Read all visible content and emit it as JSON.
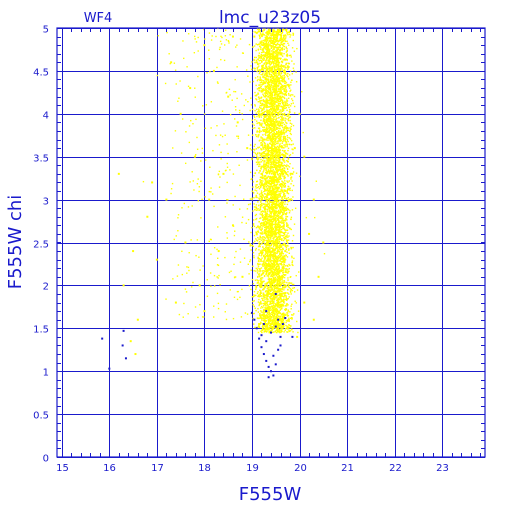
{
  "chart_data": {
    "type": "scatter",
    "title": "lmc_u23z05",
    "panel_label": "WF4",
    "xlabel": "F555W",
    "ylabel": "F555W  chi",
    "xlim": [
      14.9,
      23.9
    ],
    "ylim": [
      0,
      5
    ],
    "xticks": [
      15,
      16,
      17,
      18,
      19,
      20,
      21,
      22,
      23
    ],
    "yticks": [
      0,
      0.5,
      1,
      1.5,
      2,
      2.5,
      3,
      3.5,
      4,
      4.5,
      5
    ],
    "xtick_labels": [
      "15",
      "16",
      "17",
      "18",
      "19",
      "20",
      "21",
      "22",
      "23"
    ],
    "ytick_labels": [
      "0",
      "0.5",
      "1",
      "1.5",
      "2",
      "2.5",
      "3",
      "3.5",
      "4",
      "4.5",
      "5"
    ],
    "grid": true,
    "series": [
      {
        "color": "#ffff00",
        "points": [
          [
            19.05,
            4.9
          ],
          [
            19.1,
            4.6
          ],
          [
            19.15,
            4.3
          ],
          [
            19.2,
            4.0
          ],
          [
            19.25,
            3.7
          ],
          [
            19.3,
            3.4
          ],
          [
            19.35,
            3.1
          ],
          [
            19.4,
            2.8
          ],
          [
            19.45,
            2.5
          ],
          [
            19.5,
            2.2
          ],
          [
            19.55,
            2.0
          ],
          [
            19.6,
            1.9
          ],
          [
            19.65,
            2.1
          ],
          [
            19.7,
            2.4
          ],
          [
            19.75,
            2.7
          ],
          [
            19.8,
            3.0
          ],
          [
            19.85,
            3.3
          ],
          [
            19.9,
            3.6
          ],
          [
            19.3,
            4.8
          ],
          [
            19.5,
            4.5
          ],
          [
            19.6,
            4.2
          ],
          [
            19.4,
            3.9
          ],
          [
            19.2,
            3.3
          ],
          [
            19.7,
            3.1
          ],
          [
            19.1,
            2.6
          ],
          [
            19.35,
            2.3
          ],
          [
            19.55,
            1.8
          ],
          [
            19.45,
            1.7
          ],
          [
            19.25,
            1.65
          ],
          [
            19.6,
            1.6
          ],
          [
            19.15,
            1.55
          ],
          [
            19.75,
            1.5
          ],
          [
            18.2,
            4.5
          ],
          [
            18.5,
            4.2
          ],
          [
            18.7,
            3.9
          ],
          [
            18.9,
            3.6
          ],
          [
            18.4,
            3.3
          ],
          [
            18.1,
            3.0
          ],
          [
            18.6,
            2.7
          ],
          [
            18.3,
            2.4
          ],
          [
            18.8,
            2.1
          ],
          [
            17.5,
            4.0
          ],
          [
            17.8,
            3.5
          ],
          [
            17.2,
            3.0
          ],
          [
            17.6,
            2.5
          ],
          [
            17.9,
            2.0
          ],
          [
            17.4,
            1.8
          ],
          [
            17.0,
            2.3
          ],
          [
            16.8,
            2.8
          ],
          [
            16.5,
            2.4
          ],
          [
            16.3,
            2.0
          ],
          [
            16.6,
            1.6
          ],
          [
            18.0,
            1.7
          ],
          [
            16.9,
            3.2
          ],
          [
            20.1,
            3.5
          ],
          [
            20.3,
            3.0
          ],
          [
            20.2,
            2.6
          ],
          [
            20.5,
            2.5
          ],
          [
            20.0,
            4.0
          ],
          [
            20.1,
            1.8
          ],
          [
            20.3,
            1.6
          ],
          [
            19.95,
            1.4
          ],
          [
            16.2,
            3.3
          ],
          [
            17.3,
            4.6
          ],
          [
            18.0,
            4.8
          ],
          [
            18.6,
            4.9
          ],
          [
            17.7,
            4.3
          ],
          [
            16.45,
            1.35
          ],
          [
            16.55,
            1.2
          ],
          [
            20.4,
            2.1
          ]
        ]
      },
      {
        "color": "#1a1acc",
        "points": [
          [
            15.85,
            1.38
          ],
          [
            16.0,
            1.03
          ],
          [
            16.28,
            1.3
          ],
          [
            16.3,
            1.47
          ],
          [
            16.35,
            1.15
          ],
          [
            19.0,
            1.68
          ],
          [
            19.05,
            1.6
          ],
          [
            19.1,
            1.5
          ],
          [
            19.15,
            1.38
          ],
          [
            19.2,
            1.28
          ],
          [
            19.25,
            1.2
          ],
          [
            19.3,
            1.12
          ],
          [
            19.35,
            1.05
          ],
          [
            19.4,
            1.0
          ],
          [
            19.45,
            0.95
          ],
          [
            19.5,
            1.08
          ],
          [
            19.55,
            1.25
          ],
          [
            19.6,
            1.4
          ],
          [
            19.65,
            1.55
          ],
          [
            19.7,
            1.62
          ],
          [
            19.3,
            1.35
          ],
          [
            19.4,
            1.45
          ],
          [
            19.5,
            1.52
          ],
          [
            19.2,
            1.42
          ],
          [
            19.35,
            0.93
          ],
          [
            19.45,
            1.18
          ],
          [
            19.25,
            1.55
          ],
          [
            19.55,
            1.6
          ],
          [
            19.85,
            1.4
          ],
          [
            19.5,
            1.9
          ],
          [
            19.3,
            1.7
          ],
          [
            19.6,
            1.3
          ]
        ]
      }
    ],
    "filler": [
      {
        "color": "#ffff00",
        "x_center": 19.45,
        "x_sd": 0.18,
        "x_min": 18.9,
        "x_max": 20.05,
        "y_min": 1.45,
        "y_max": 5.0,
        "count": 6000
      },
      {
        "color": "#ffff00",
        "x_center": 18.6,
        "x_sd": 0.7,
        "x_min": 16.6,
        "x_max": 20.6,
        "y_min": 1.6,
        "y_max": 5.0,
        "count": 420
      }
    ]
  }
}
